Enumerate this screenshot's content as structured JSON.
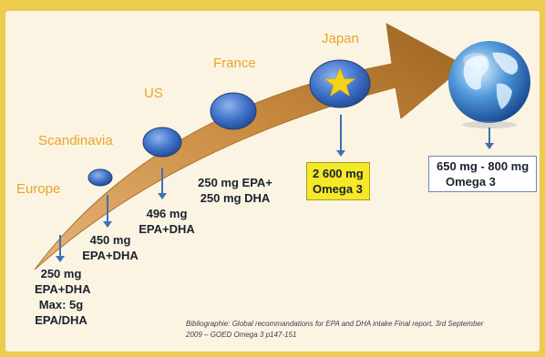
{
  "steps": [
    {
      "country": "Europe",
      "lines": [
        "250 mg",
        "EPA+DHA",
        "Max: 5g",
        "EPA/DHA"
      ]
    },
    {
      "country": "Scandinavia",
      "lines": [
        "450 mg",
        "EPA+DHA"
      ]
    },
    {
      "country": "US",
      "lines": [
        "496 mg",
        "EPA+DHA"
      ]
    },
    {
      "country": "France",
      "lines": [
        "250 mg EPA+",
        "250 mg DHA"
      ]
    },
    {
      "country": "Japan",
      "lines": [
        "2 600 mg",
        "Omega 3"
      ]
    }
  ],
  "global": {
    "lines": [
      "650 mg - 800 mg",
      "Omega 3"
    ]
  },
  "bibliography": {
    "line1": "Bibliographie: Global recommandations for EPA and DHA intake  Final report, 3rd September",
    "line2": "2009 – GOED Omega 3 p147-151"
  },
  "colors": {
    "frame": "#eccb4f",
    "panel": "#fbf4e2",
    "arrow": "#c88a3a",
    "country_text": "#e8a52a",
    "down_arrow": "#3f6fb6",
    "highlight_box": "#f5e826",
    "star": "#f5d21a"
  },
  "icons": [
    "globe-icon",
    "star-icon",
    "down-arrow-icon"
  ]
}
